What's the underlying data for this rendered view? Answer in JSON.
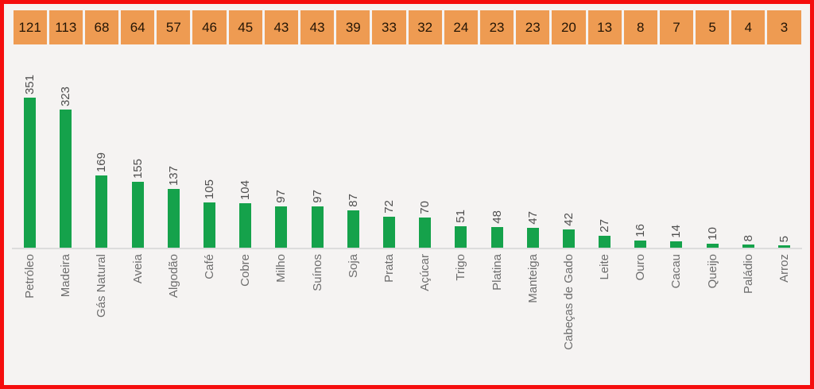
{
  "chart_data": {
    "type": "bar",
    "title": "",
    "xlabel": "",
    "ylabel": "",
    "categories": [
      "Petróleo",
      "Madeira",
      "Gás Natural",
      "Aveia",
      "Algodão",
      "Café",
      "Cobre",
      "Milho",
      "Suínos",
      "Soja",
      "Prata",
      "Açúcar",
      "Trigo",
      "Platina",
      "Manteiga",
      "Cabeças de Gado",
      "Leite",
      "Ouro",
      "Cacau",
      "Queijo",
      "Paládio",
      "Arroz"
    ],
    "values": [
      351,
      323,
      169,
      155,
      137,
      105,
      104,
      97,
      97,
      87,
      72,
      70,
      51,
      48,
      47,
      42,
      27,
      16,
      14,
      10,
      8,
      5
    ],
    "top_band_values": [
      121,
      113,
      68,
      64,
      57,
      46,
      45,
      43,
      43,
      39,
      33,
      32,
      24,
      23,
      23,
      20,
      13,
      8,
      7,
      5,
      4,
      3
    ],
    "data_labels": true,
    "label_rotation_deg": 90,
    "grid": false,
    "legend": false,
    "ylim": [
      0,
      360
    ],
    "colors": {
      "bar": "#15a24b",
      "header_bg": "#ee9b52",
      "header_text": "#241505",
      "value_label": "#4f4f4f",
      "category_label": "#6e6e6e",
      "axis": "#dcdcdc",
      "background": "#f5f3f2",
      "border": "#f50d0d"
    }
  }
}
